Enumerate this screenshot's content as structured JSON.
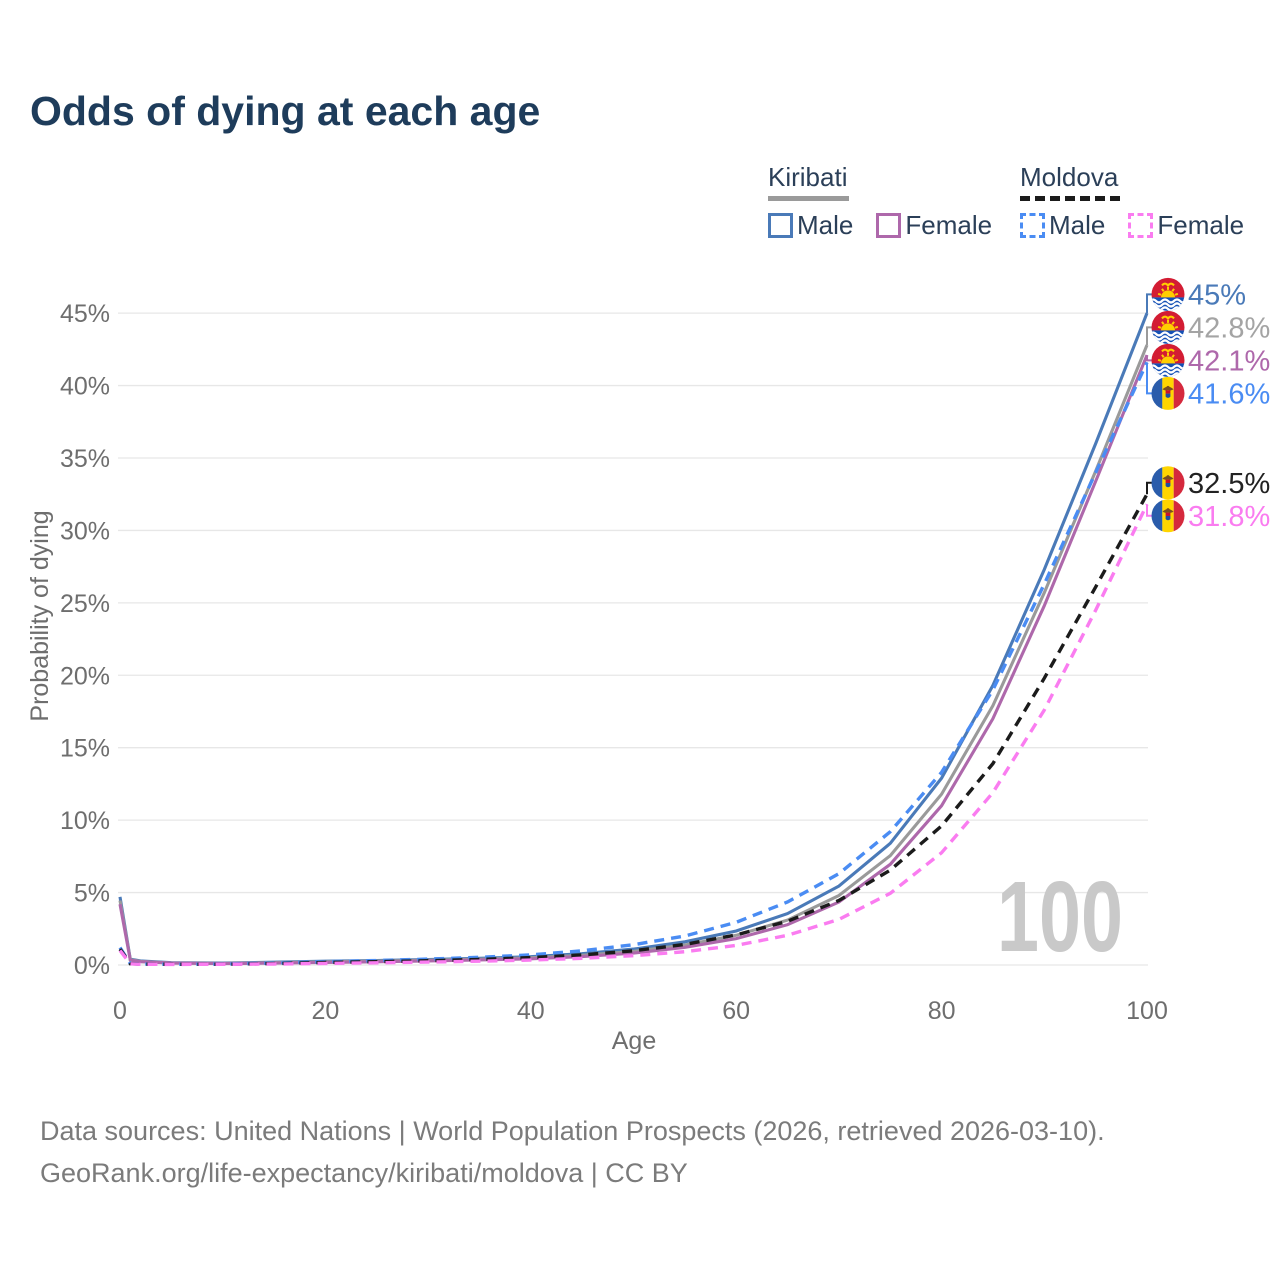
{
  "title": "Odds of dying at each age",
  "legend": {
    "groups": [
      {
        "country": "Kiribati",
        "line_style": "solid",
        "line_color": "#9a9a9a",
        "items": [
          {
            "label": "Male",
            "color": "#4a7ab8"
          },
          {
            "label": "Female",
            "color": "#ae68ab"
          }
        ]
      },
      {
        "country": "Moldova",
        "line_style": "dashed",
        "line_color": "#1b1b1b",
        "items": [
          {
            "label": "Male",
            "color": "#4a8cf3"
          },
          {
            "label": "Female",
            "color": "#fa7cf0"
          }
        ]
      }
    ]
  },
  "chart_data": {
    "type": "line",
    "title": "Odds of dying at each age",
    "xlabel": "Age",
    "ylabel": "Probability of dying",
    "xlim": [
      0,
      100
    ],
    "ylim_pct": [
      0,
      46
    ],
    "grid": true,
    "legend_position": "top-right",
    "watermark": "100",
    "x_tick_values": [
      0,
      20,
      40,
      60,
      80,
      100
    ],
    "x_tick_labels": [
      "0",
      "20",
      "40",
      "60",
      "80",
      "100"
    ],
    "y_tick_values": [
      0,
      5,
      10,
      15,
      20,
      25,
      30,
      35,
      40,
      45
    ],
    "y_tick_labels": [
      "0%",
      "5%",
      "10%",
      "15%",
      "20%",
      "25%",
      "30%",
      "35%",
      "40%",
      "45%"
    ],
    "ages": [
      0,
      1,
      2,
      5,
      10,
      15,
      20,
      25,
      30,
      35,
      40,
      45,
      50,
      55,
      60,
      65,
      70,
      75,
      80,
      85,
      90,
      95,
      100
    ],
    "series": [
      {
        "name": "Kiribati Male",
        "country": "Kiribati",
        "sex": "Male",
        "style": "solid",
        "color": "#4a7ab8",
        "flag": "kiribati",
        "end_label": "45%",
        "label_color": "#4a7ab8",
        "values": [
          4.7,
          0.4,
          0.28,
          0.16,
          0.13,
          0.19,
          0.26,
          0.31,
          0.38,
          0.46,
          0.57,
          0.78,
          1.1,
          1.6,
          2.35,
          3.55,
          5.45,
          8.4,
          12.9,
          19.3,
          27.3,
          36.0,
          45.0
        ]
      },
      {
        "name": "Kiribati Both sexes",
        "country": "Kiribati",
        "sex": "Both sexes",
        "style": "solid",
        "color": "#9a9a9a",
        "flag": "kiribati",
        "end_label": "42.8%",
        "label_color": "#a4a4a4",
        "values": [
          4.45,
          0.37,
          0.25,
          0.14,
          0.11,
          0.16,
          0.22,
          0.27,
          0.33,
          0.4,
          0.5,
          0.67,
          0.94,
          1.38,
          2.05,
          3.1,
          4.8,
          7.55,
          11.8,
          17.9,
          25.7,
          34.1,
          42.8
        ]
      },
      {
        "name": "Kiribati Female",
        "country": "Kiribati",
        "sex": "Female",
        "style": "solid",
        "color": "#ae68ab",
        "flag": "kiribati",
        "end_label": "42.1%",
        "label_color": "#ae68ab",
        "values": [
          4.2,
          0.34,
          0.23,
          0.13,
          0.1,
          0.13,
          0.18,
          0.22,
          0.28,
          0.35,
          0.43,
          0.58,
          0.82,
          1.22,
          1.82,
          2.78,
          4.35,
          6.95,
          11.0,
          17.0,
          24.8,
          33.4,
          42.1
        ]
      },
      {
        "name": "Moldova Male",
        "country": "Moldova",
        "sex": "Male",
        "style": "dashed",
        "color": "#4a8cf3",
        "flag": "moldova",
        "end_label": "41.6%",
        "label_color": "#4a8cf3",
        "values": [
          1.2,
          0.1,
          0.07,
          0.05,
          0.06,
          0.13,
          0.23,
          0.31,
          0.41,
          0.53,
          0.7,
          0.98,
          1.4,
          2.0,
          2.95,
          4.35,
          6.3,
          9.2,
          13.3,
          19.0,
          26.3,
          34.0,
          41.6
        ]
      },
      {
        "name": "Moldova Both sexes",
        "country": "Moldova",
        "sex": "Both sexes",
        "style": "dashed",
        "color": "#1b1b1b",
        "flag": "moldova",
        "end_label": "32.5%",
        "label_color": "#222222",
        "values": [
          1.1,
          0.09,
          0.06,
          0.05,
          0.05,
          0.1,
          0.17,
          0.23,
          0.3,
          0.39,
          0.51,
          0.7,
          0.98,
          1.42,
          2.08,
          3.02,
          4.45,
          6.55,
          9.6,
          13.9,
          19.8,
          26.1,
          32.5
        ]
      },
      {
        "name": "Moldova Female",
        "country": "Moldova",
        "sex": "Female",
        "style": "dashed",
        "color": "#fa7cf0",
        "flag": "moldova",
        "end_label": "31.8%",
        "label_color": "#fa7cf0",
        "values": [
          1.0,
          0.08,
          0.05,
          0.04,
          0.05,
          0.07,
          0.11,
          0.15,
          0.2,
          0.26,
          0.34,
          0.46,
          0.64,
          0.92,
          1.35,
          2.05,
          3.15,
          4.95,
          7.75,
          11.9,
          17.6,
          24.5,
          31.8
        ]
      }
    ]
  },
  "footer": {
    "line1": "Data sources: United Nations | World Population Prospects (2026, retrieved 2026-03-10).",
    "line2": "GeoRank.org/life-expectancy/kiribati/moldova | CC BY"
  },
  "colors": {
    "title": "#1e3c5b",
    "legend_text": "#2b3f58",
    "axis_text": "#6e6e6e",
    "grid": "#e7e7e7",
    "watermark": "#c9c9c9",
    "footer_text": "#7b7b7b"
  }
}
